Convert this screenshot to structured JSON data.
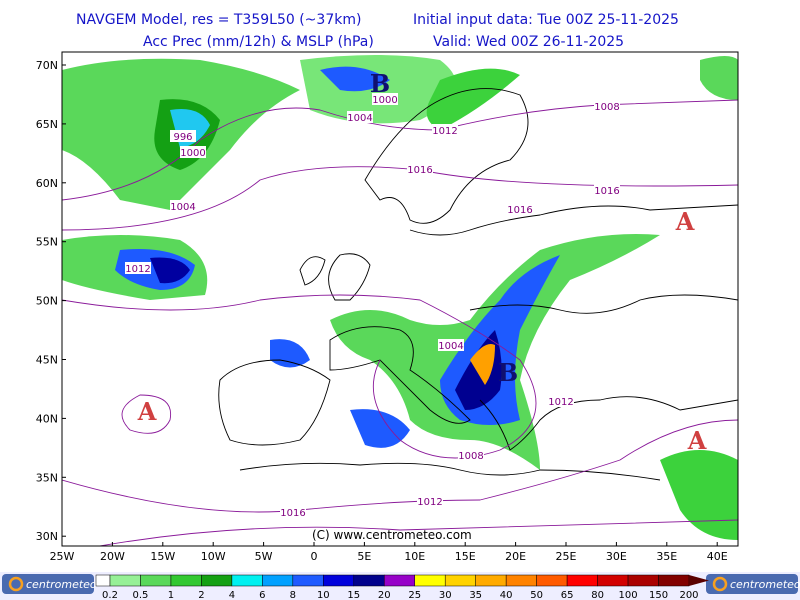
{
  "header": {
    "model": "NAVGEM Model, res = T359L50 (~37km)",
    "init": "Initial input data: Tue 00Z 25-11-2025",
    "field": "Acc Prec (mm/12h) & MSLP (hPa)",
    "valid": "Valid: Wed 00Z 26-11-2025"
  },
  "lat_labels": [
    "70N",
    "65N",
    "60N",
    "55N",
    "50N",
    "45N",
    "40N",
    "35N",
    "30N"
  ],
  "lon_labels": [
    "25W",
    "20W",
    "15W",
    "10W",
    "5W",
    "0",
    "5E",
    "10E",
    "15E",
    "20E",
    "25E",
    "30E",
    "35E",
    "40E"
  ],
  "isobar_labels": [
    "1000",
    "1004",
    "996",
    "1000",
    "1004",
    "1012",
    "1012",
    "1008",
    "1016",
    "1016",
    "1016",
    "1004",
    "1012",
    "1008",
    "1012",
    "1016"
  ],
  "centers": [
    "B",
    "B",
    "A",
    "A",
    "A"
  ],
  "copyright": "(C) www.centrometeo.com",
  "logos": [
    "centrometeo",
    "centrometeo"
  ],
  "legend": {
    "labels": [
      "0.2",
      "0.5",
      "1",
      "2",
      "4",
      "6",
      "8",
      "10",
      "15",
      "20",
      "25",
      "30",
      "35",
      "40",
      "50",
      "65",
      "80",
      "100",
      "150",
      "200"
    ],
    "colors": [
      "#96f096",
      "#5ad85a",
      "#32c832",
      "#14a014",
      "#00f0f0",
      "#00a0ff",
      "#1e5aff",
      "#0000dc",
      "#00008c",
      "#9600c8",
      "#ffff00",
      "#ffd200",
      "#ffaa00",
      "#ff8200",
      "#ff5a00",
      "#ff0000",
      "#d20000",
      "#aa0000",
      "#820000",
      "#5a0000"
    ]
  }
}
